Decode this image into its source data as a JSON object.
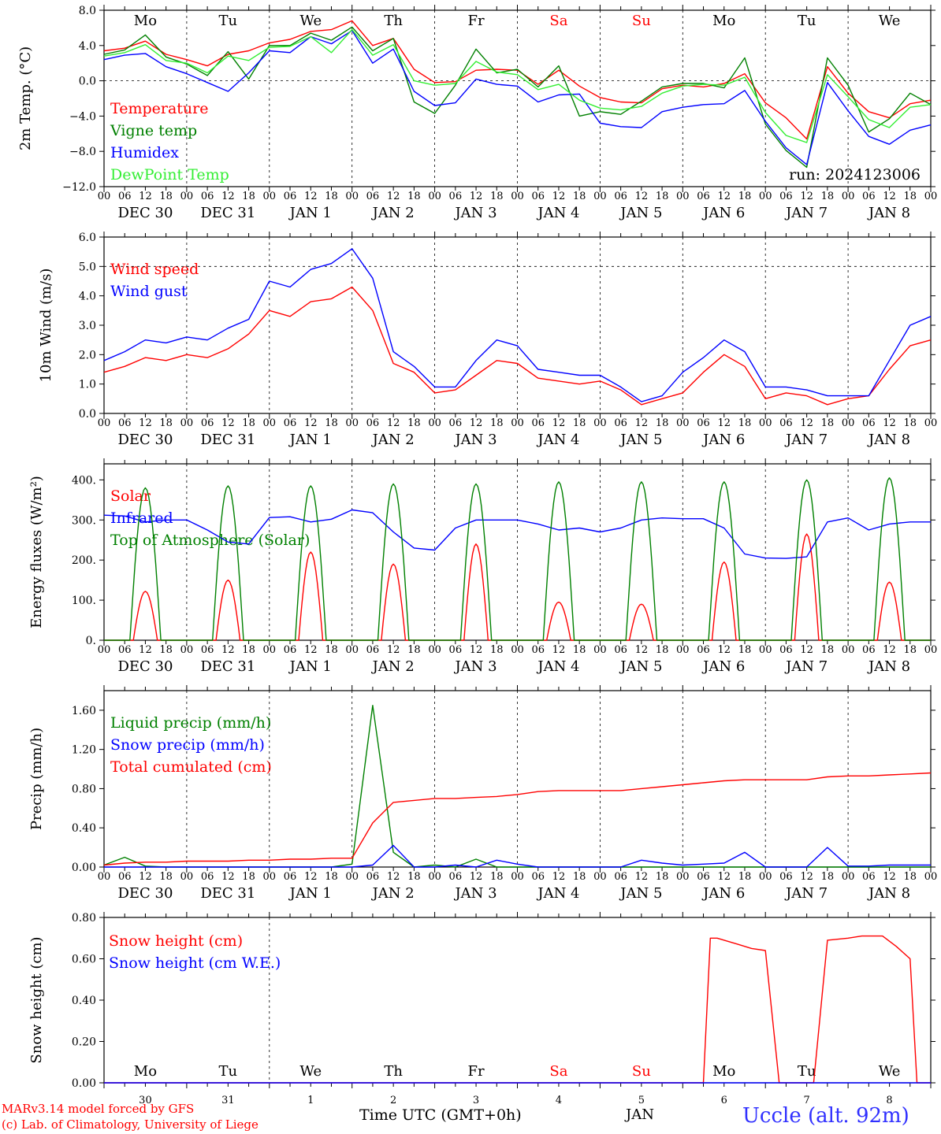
{
  "footer": {
    "model_line": "MARv3.14 model forced by GFS",
    "lab_line": "(c) Lab. of Climatology, University of Liege",
    "xaxis_title": "Time UTC (GMT+0h)",
    "station": "Uccle (alt. 92m)",
    "month": "JAN"
  },
  "colors": {
    "red": "#ff0000",
    "green": "#008000",
    "blue": "#0000ff",
    "lightgreen": "#33ee33",
    "weekend": "#ff0000"
  },
  "weekdays": [
    "Mo",
    "Tu",
    "We",
    "Th",
    "Fr",
    "Sa",
    "Su",
    "Mo",
    "Tu",
    "We"
  ],
  "weekend_index": [
    5,
    6
  ],
  "date_labels": [
    "DEC 30",
    "DEC 31",
    "JAN  1",
    "JAN  2",
    "JAN  3",
    "JAN  4",
    "JAN  5",
    "JAN  6",
    "JAN  7",
    "JAN  8"
  ],
  "day_numbers": [
    "30",
    "31",
    "1",
    "2",
    "3",
    "4",
    "5",
    "6",
    "7",
    "8"
  ],
  "hour_labels": [
    "00",
    "06",
    "12",
    "18"
  ],
  "last_hour_label": "00",
  "chart_data": [
    {
      "type": "line",
      "ylabel": "2m Temp. (°C)",
      "ylim": [
        -12,
        8
      ],
      "yticks": [
        "8.0",
        "4.0",
        "0.0",
        "−4.0",
        "−8.0",
        "−12.0"
      ],
      "ytick_values": [
        8,
        4,
        0,
        -4,
        -8,
        -12
      ],
      "ref_line": 0,
      "show_weekdays": true,
      "run_label": "run: 2024123006",
      "x_hours": [
        0,
        6,
        12,
        18,
        24,
        30,
        36,
        42,
        48,
        54,
        60,
        66,
        72,
        78,
        84,
        90,
        96,
        102,
        108,
        114,
        120,
        126,
        132,
        138,
        144,
        150,
        156,
        162,
        168,
        174,
        180,
        186,
        192,
        198,
        204,
        210,
        216,
        222,
        228,
        234,
        240
      ],
      "series": [
        {
          "name": "Temperature",
          "color": "#ff0000",
          "values": [
            3.4,
            3.7,
            4.5,
            3.0,
            2.4,
            1.7,
            3.0,
            3.4,
            4.3,
            4.7,
            5.6,
            5.8,
            6.8,
            4.0,
            4.8,
            1.3,
            -0.2,
            -0.1,
            1.2,
            1.3,
            1.2,
            -0.4,
            1.2,
            -0.6,
            -1.9,
            -2.4,
            -2.5,
            -0.9,
            -0.5,
            -0.7,
            -0.3,
            0.8,
            -2.5,
            -4.2,
            -6.6,
            1.6,
            -1.4,
            -3.5,
            -4.2,
            -2.6,
            -2.2
          ]
        },
        {
          "name": "Vigne temp",
          "color": "#008000",
          "values": [
            3.0,
            3.5,
            5.2,
            2.7,
            1.9,
            0.6,
            3.3,
            0.2,
            4.0,
            4.0,
            5.4,
            4.6,
            6.1,
            3.4,
            4.8,
            -2.4,
            -3.7,
            -0.5,
            3.6,
            0.9,
            1.3,
            -0.7,
            1.7,
            -4.0,
            -3.5,
            -3.8,
            -2.3,
            -0.7,
            -0.3,
            -0.3,
            -0.8,
            2.6,
            -4.9,
            -7.9,
            -9.8,
            2.6,
            -0.5,
            -5.8,
            -4.3,
            -1.4,
            -2.7
          ]
        },
        {
          "name": "Humidex",
          "color": "#0000ff",
          "values": [
            2.4,
            2.9,
            3.1,
            1.6,
            0.8,
            -0.2,
            -1.2,
            0.9,
            3.4,
            3.2,
            5.0,
            4.2,
            5.7,
            2.0,
            3.6,
            -1.2,
            -2.8,
            -2.5,
            0.2,
            -0.4,
            -0.6,
            -2.4,
            -1.6,
            -1.5,
            -4.8,
            -5.2,
            -5.3,
            -3.5,
            -3.0,
            -2.7,
            -2.6,
            -1.1,
            -4.6,
            -7.6,
            -9.5,
            -0.2,
            -3.4,
            -6.3,
            -7.2,
            -5.6,
            -5.0
          ]
        },
        {
          "name": "DewPoint Temp",
          "color": "#33ee33",
          "values": [
            2.8,
            3.2,
            4.1,
            2.3,
            2.0,
            0.9,
            2.8,
            2.3,
            3.8,
            3.9,
            5.0,
            3.2,
            5.8,
            2.9,
            4.1,
            0.0,
            -0.5,
            -0.3,
            2.2,
            1.0,
            0.7,
            -1.0,
            -0.4,
            -2.2,
            -3.1,
            -3.3,
            -2.9,
            -1.4,
            -0.6,
            -0.4,
            -0.5,
            0.4,
            -3.6,
            -6.2,
            -7.0,
            0.7,
            -1.8,
            -4.4,
            -5.3,
            -3.0,
            -2.7
          ]
        }
      ]
    },
    {
      "type": "line",
      "ylabel": "10m Wind (m/s)",
      "ylim": [
        0,
        6
      ],
      "yticks": [
        "6.0",
        "5.0",
        "4.0",
        "3.0",
        "2.0",
        "1.0",
        "0.0"
      ],
      "ytick_values": [
        6,
        5,
        4,
        3,
        2,
        1,
        0
      ],
      "ref_line": 5,
      "x_hours": [
        0,
        6,
        12,
        18,
        24,
        30,
        36,
        42,
        48,
        54,
        60,
        66,
        72,
        78,
        84,
        90,
        96,
        102,
        108,
        114,
        120,
        126,
        132,
        138,
        144,
        150,
        156,
        162,
        168,
        174,
        180,
        186,
        192,
        198,
        204,
        210,
        216,
        222,
        228,
        234,
        240
      ],
      "series": [
        {
          "name": "Wind speed",
          "color": "#ff0000",
          "values": [
            1.4,
            1.6,
            1.9,
            1.8,
            2.0,
            1.9,
            2.2,
            2.7,
            3.5,
            3.3,
            3.8,
            3.9,
            4.3,
            3.5,
            1.7,
            1.4,
            0.7,
            0.8,
            1.3,
            1.8,
            1.7,
            1.2,
            1.1,
            1.0,
            1.1,
            0.8,
            0.3,
            0.5,
            0.7,
            1.4,
            2.0,
            1.6,
            0.5,
            0.7,
            0.6,
            0.3,
            0.5,
            0.6,
            1.5,
            2.3,
            2.5
          ]
        },
        {
          "name": "Wind gust",
          "color": "#0000ff",
          "values": [
            1.8,
            2.1,
            2.5,
            2.4,
            2.6,
            2.5,
            2.9,
            3.2,
            4.5,
            4.3,
            4.9,
            5.1,
            5.6,
            4.6,
            2.1,
            1.6,
            0.9,
            0.9,
            1.8,
            2.5,
            2.3,
            1.5,
            1.4,
            1.3,
            1.3,
            0.9,
            0.4,
            0.6,
            1.4,
            1.9,
            2.5,
            2.1,
            0.9,
            0.9,
            0.8,
            0.6,
            0.6,
            0.6,
            1.8,
            3.0,
            3.3
          ]
        }
      ]
    },
    {
      "type": "line",
      "ylabel": "Energy fluxes (W/m²)",
      "ylim": [
        0,
        440
      ],
      "yticks": [
        "400.",
        "300.",
        "200.",
        "100.",
        "0."
      ],
      "ytick_values": [
        400,
        300,
        200,
        100,
        0
      ],
      "daily_peaks": {
        "solar": [
          122,
          150,
          220,
          190,
          240,
          95,
          90,
          195,
          265,
          145
        ],
        "toa": [
          380,
          385,
          385,
          390,
          390,
          395,
          395,
          395,
          400,
          405
        ]
      },
      "x_hours": [
        0,
        6,
        12,
        18,
        24,
        30,
        36,
        42,
        48,
        54,
        60,
        66,
        72,
        78,
        84,
        90,
        96,
        102,
        108,
        114,
        120,
        126,
        132,
        138,
        144,
        150,
        156,
        162,
        168,
        174,
        180,
        186,
        192,
        198,
        204,
        210,
        216,
        222,
        228,
        234,
        240
      ],
      "series": [
        {
          "name": "Solar",
          "color": "#ff0000"
        },
        {
          "name": "Infrared",
          "color": "#0000ff",
          "values": [
            312,
            310,
            295,
            300,
            300,
            275,
            245,
            240,
            306,
            308,
            295,
            302,
            325,
            318,
            270,
            230,
            225,
            280,
            300,
            300,
            300,
            290,
            275,
            280,
            270,
            280,
            300,
            305,
            303,
            303,
            280,
            215,
            205,
            204,
            208,
            295,
            305,
            275,
            290,
            295,
            295
          ]
        },
        {
          "name": "Top of Atmosphere (Solar)",
          "color": "#008000"
        }
      ]
    },
    {
      "type": "line",
      "ylabel": "Precip (mm/h)",
      "ylim": [
        0,
        1.8
      ],
      "yticks": [
        "1.60",
        "1.20",
        "0.80",
        "0.40",
        "0.00"
      ],
      "ytick_values": [
        1.6,
        1.2,
        0.8,
        0.4,
        0.0
      ],
      "x_hours": [
        0,
        6,
        12,
        18,
        24,
        30,
        36,
        42,
        48,
        54,
        60,
        66,
        72,
        78,
        84,
        90,
        96,
        102,
        108,
        114,
        120,
        126,
        132,
        138,
        144,
        150,
        156,
        162,
        168,
        174,
        180,
        186,
        192,
        198,
        204,
        210,
        216,
        222,
        228,
        234,
        240
      ],
      "series": [
        {
          "name": "Liquid precip (mm/h)",
          "color": "#008000",
          "values": [
            0.02,
            0.1,
            0.01,
            0.0,
            0.0,
            0.0,
            0.0,
            0.0,
            0.0,
            0.0,
            0.0,
            0.0,
            0.03,
            1.65,
            0.15,
            0.0,
            0.02,
            0.0,
            0.08,
            0.0,
            0.0,
            0.0,
            0.0,
            0.0,
            0.0,
            0.0,
            0.0,
            0.0,
            0.0,
            0.0,
            0.0,
            0.0,
            0.0,
            0.0,
            0.0,
            0.0,
            0.0,
            0.0,
            0.0,
            0.0,
            0.0
          ]
        },
        {
          "name": "Snow precip (mm/h)",
          "color": "#0000ff",
          "values": [
            0.0,
            0.0,
            0.0,
            0.0,
            0.0,
            0.0,
            0.0,
            0.0,
            0.0,
            0.0,
            0.0,
            0.0,
            0.0,
            0.02,
            0.22,
            0.0,
            0.0,
            0.02,
            0.0,
            0.07,
            0.03,
            0.0,
            0.0,
            0.0,
            0.0,
            0.0,
            0.07,
            0.04,
            0.02,
            0.03,
            0.04,
            0.15,
            0.0,
            0.0,
            0.0,
            0.2,
            0.01,
            0.01,
            0.02,
            0.02,
            0.02
          ]
        },
        {
          "name": "Total cumulated (cm)",
          "color": "#ff0000",
          "values": [
            0.02,
            0.04,
            0.05,
            0.05,
            0.06,
            0.06,
            0.06,
            0.07,
            0.07,
            0.08,
            0.08,
            0.09,
            0.09,
            0.45,
            0.66,
            0.68,
            0.7,
            0.7,
            0.71,
            0.72,
            0.74,
            0.77,
            0.78,
            0.78,
            0.78,
            0.78,
            0.8,
            0.82,
            0.84,
            0.86,
            0.88,
            0.89,
            0.89,
            0.89,
            0.89,
            0.92,
            0.93,
            0.93,
            0.94,
            0.95,
            0.96
          ]
        }
      ]
    },
    {
      "type": "line",
      "ylabel": "Snow height (cm)",
      "ylim": [
        0,
        0.8
      ],
      "yticks": [
        "0.80",
        "0.60",
        "0.40",
        "0.20",
        "0.00"
      ],
      "ytick_values": [
        0.8,
        0.6,
        0.4,
        0.2,
        0.0
      ],
      "x_hours": [
        0,
        24,
        48,
        72,
        96,
        110,
        120,
        138,
        144,
        154,
        156,
        160,
        164,
        168,
        174,
        176,
        178,
        184,
        188,
        192,
        196,
        200,
        204,
        206,
        210,
        216,
        220,
        226,
        230,
        234,
        236,
        240
      ],
      "series": [
        {
          "name": "Snow height (cm)",
          "color": "#ff0000",
          "values": [
            0,
            0,
            0,
            0,
            0,
            0,
            0,
            0,
            0,
            0,
            0,
            0,
            0,
            0,
            0,
            0.7,
            0.7,
            0.67,
            0.65,
            0.64,
            0,
            0,
            0,
            0,
            0.69,
            0.7,
            0.71,
            0.71,
            0.66,
            0.6,
            0,
            0
          ]
        },
        {
          "name": "Snow height (cm W.E.)",
          "color": "#0000ff",
          "values": [
            0,
            0,
            0,
            0,
            0,
            0,
            0,
            0,
            0,
            0,
            0,
            0,
            0,
            0,
            0,
            0,
            0,
            0,
            0,
            0,
            0,
            0,
            0,
            0,
            0,
            0,
            0,
            0,
            0,
            0,
            0,
            0
          ]
        }
      ]
    }
  ]
}
